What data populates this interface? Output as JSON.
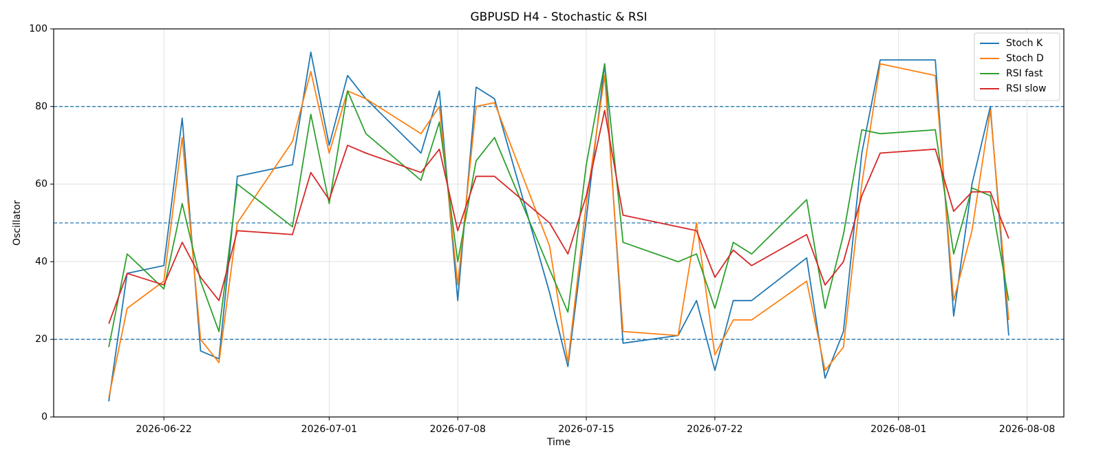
{
  "chart_data": {
    "type": "line",
    "title": "GBPUSD H4 - Stochastic & RSI",
    "x_label": "Time",
    "y_label": "Oscillator",
    "x": [
      "2026-06-19",
      "2026-06-20",
      "2026-06-22",
      "2026-06-23",
      "2026-06-24",
      "2026-06-25",
      "2026-06-26",
      "2026-06-29",
      "2026-06-30",
      "2026-07-01",
      "2026-07-02",
      "2026-07-03",
      "2026-07-06",
      "2026-07-07",
      "2026-07-08",
      "2026-07-09",
      "2026-07-10",
      "2026-07-13",
      "2026-07-14",
      "2026-07-15",
      "2026-07-16",
      "2026-07-17",
      "2026-07-20",
      "2026-07-21",
      "2026-07-22",
      "2026-07-23",
      "2026-07-24",
      "2026-07-27",
      "2026-07-28",
      "2026-07-29",
      "2026-07-30",
      "2026-07-31",
      "2026-08-03",
      "2026-08-04",
      "2026-08-05",
      "2026-08-06",
      "2026-08-07"
    ],
    "series": [
      {
        "name": "Stoch K",
        "color": "#1f77b4",
        "values": [
          4,
          37,
          39,
          77,
          17,
          15,
          62,
          65,
          94,
          70,
          88,
          82,
          68,
          84,
          30,
          85,
          82,
          32,
          13,
          51,
          91,
          19,
          21,
          30,
          12,
          30,
          30,
          41,
          10,
          22,
          68,
          92,
          92,
          26,
          60,
          80,
          21
        ]
      },
      {
        "name": "Stoch D",
        "color": "#ff7f0e",
        "values": [
          5,
          28,
          35,
          72,
          20,
          14,
          50,
          71,
          89,
          68,
          84,
          82,
          73,
          80,
          34,
          80,
          81,
          44,
          14,
          55,
          88,
          22,
          21,
          50,
          16,
          25,
          25,
          35,
          12,
          18,
          60,
          91,
          88,
          30,
          48,
          79,
          25
        ]
      },
      {
        "name": "RSI fast",
        "color": "#2ca02c",
        "values": [
          18,
          42,
          33,
          55,
          35,
          22,
          60,
          49,
          78,
          55,
          84,
          73,
          61,
          76,
          40,
          66,
          72,
          38,
          27,
          65,
          91,
          45,
          40,
          42,
          28,
          45,
          42,
          56,
          28,
          47,
          74,
          73,
          74,
          42,
          59,
          57,
          30
        ]
      },
      {
        "name": "RSI slow",
        "color": "#d62728",
        "values": [
          24,
          37,
          34,
          45,
          36,
          30,
          48,
          47,
          63,
          56,
          70,
          68,
          63,
          69,
          48,
          62,
          62,
          50,
          42,
          57,
          79,
          52,
          49,
          48,
          36,
          43,
          39,
          47,
          34,
          40,
          57,
          68,
          69,
          53,
          58,
          58,
          46
        ]
      }
    ],
    "hlines": [
      20,
      50,
      80
    ],
    "hline_color": "#1f77b4",
    "xlim": [
      "2026-06-16",
      "2026-08-10"
    ],
    "xticks": [
      "2026-06-22",
      "2026-07-01",
      "2026-07-08",
      "2026-07-15",
      "2026-07-22",
      "2026-08-01",
      "2026-08-08"
    ],
    "ylim": [
      0,
      100
    ],
    "yticks": [
      0,
      20,
      40,
      60,
      80,
      100
    ],
    "grid": true,
    "legend": "upper right"
  }
}
